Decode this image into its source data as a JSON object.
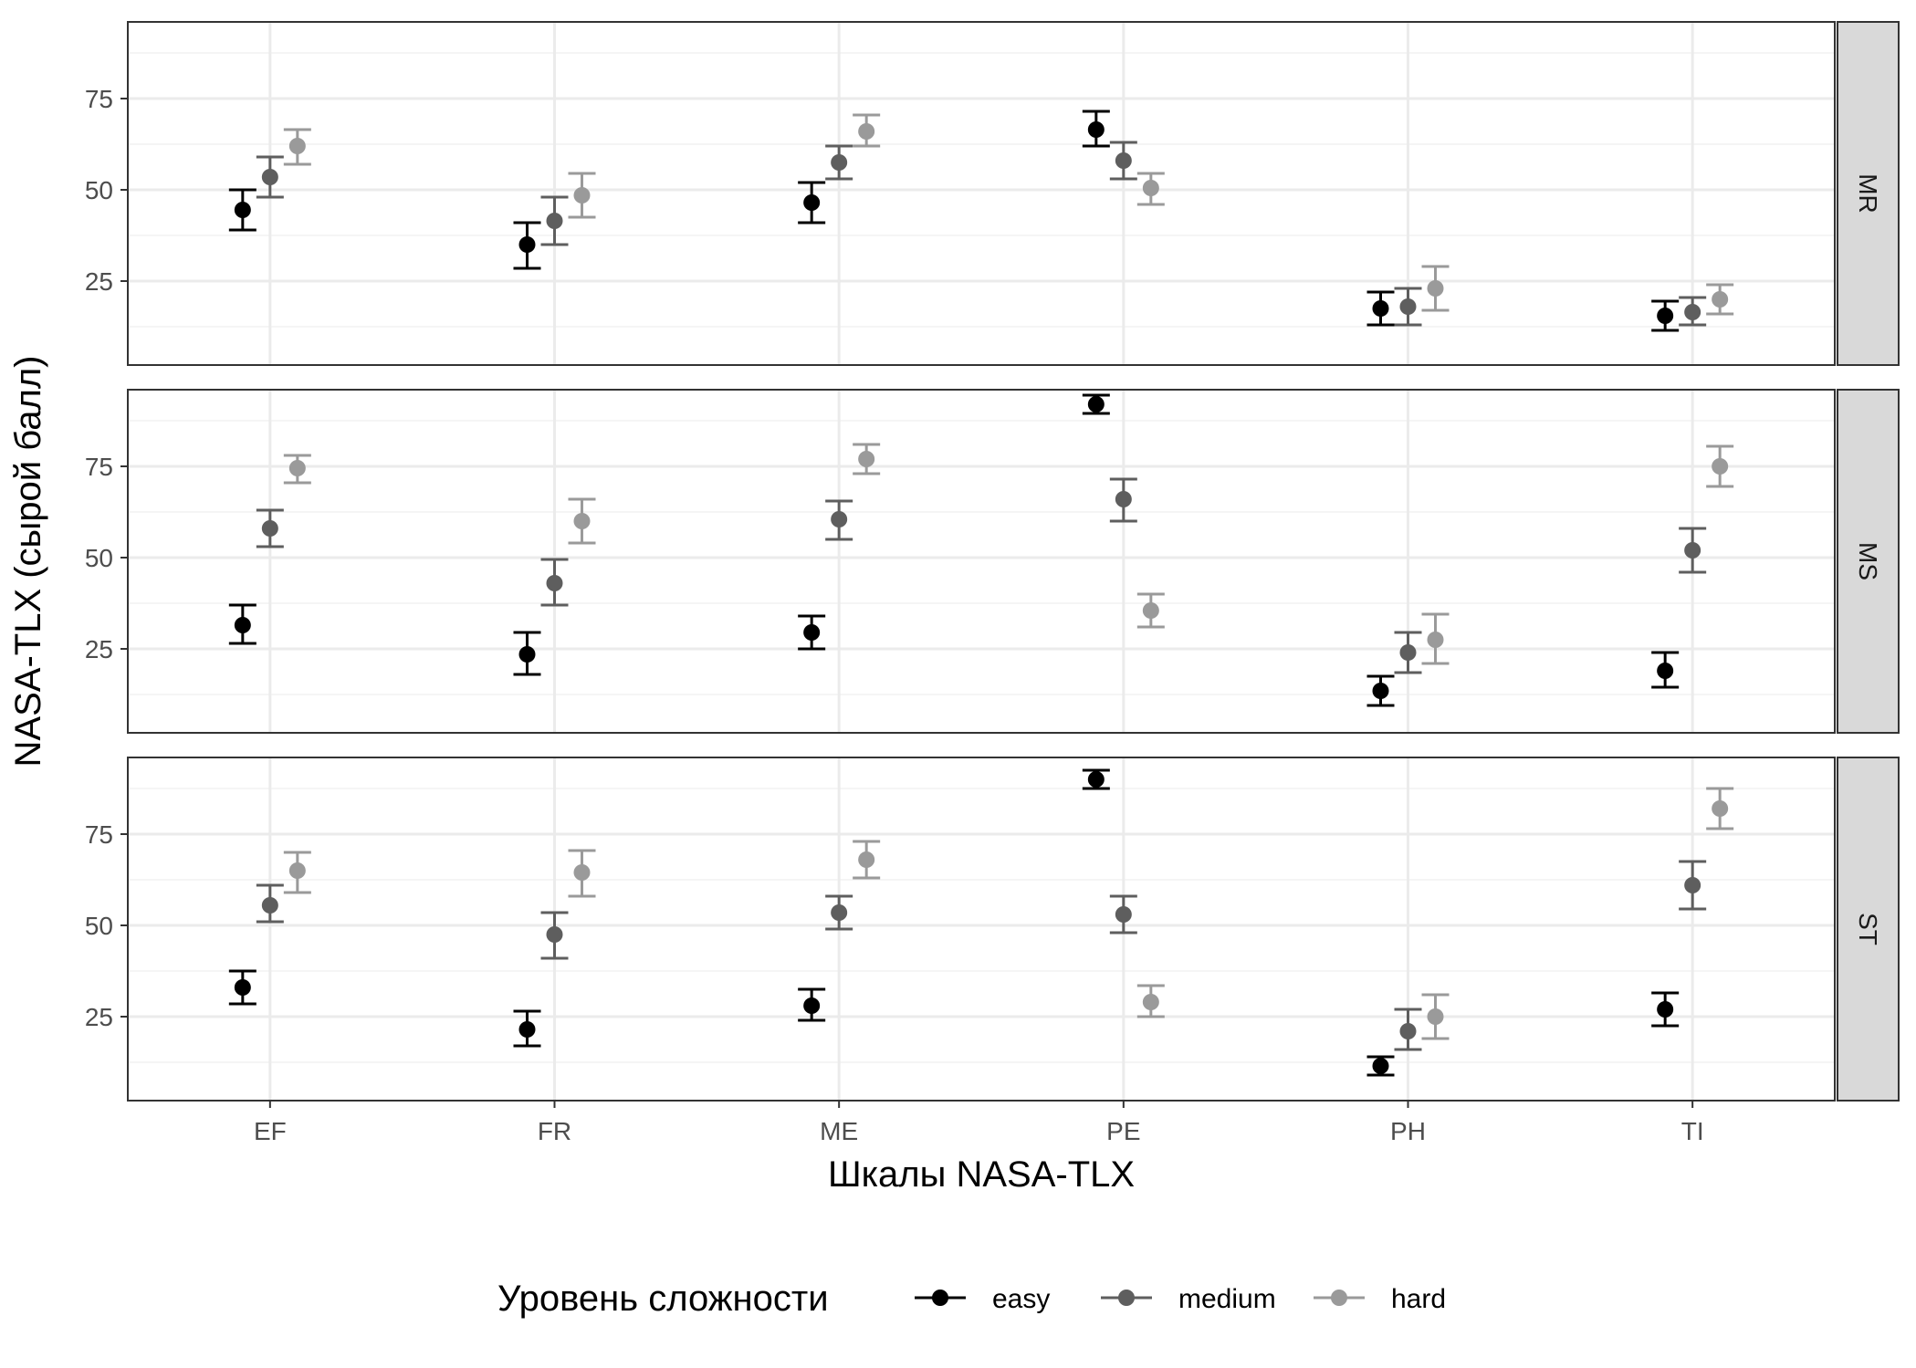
{
  "chart_data": {
    "type": "scatter",
    "subtype": "point-errorbar, faceted",
    "xlabel": "Шкалы NASA-TLX",
    "ylabel": "NASA-TLX (сырой балл)",
    "categories": [
      "EF",
      "FR",
      "ME",
      "PE",
      "PH",
      "TI"
    ],
    "y_ticks": [
      25,
      50,
      75
    ],
    "ylim": [
      2,
      96
    ],
    "grid": true,
    "legend": {
      "title": "Уровень сложности",
      "position": "bottom",
      "entries": [
        "easy",
        "medium",
        "hard"
      ]
    },
    "colors": {
      "easy": "#000000",
      "medium": "#5e5e5e",
      "hard": "#9a9a9a"
    },
    "facets": [
      {
        "name": "MR",
        "series": [
          {
            "name": "easy",
            "values": [
              44.5,
              35,
              46.5,
              66.5,
              17.5,
              15.5
            ],
            "lower": [
              39,
              28.5,
              41,
              62,
              13,
              11.5
            ],
            "upper": [
              50,
              41,
              52,
              71.5,
              22,
              19.5
            ]
          },
          {
            "name": "medium",
            "values": [
              53.5,
              41.5,
              57.5,
              58,
              18,
              16.5
            ],
            "lower": [
              48,
              35,
              53,
              53,
              13,
              13
            ],
            "upper": [
              59,
              48,
              62,
              63,
              23,
              20.5
            ]
          },
          {
            "name": "hard",
            "values": [
              62,
              48.5,
              66,
              50.5,
              23,
              20
            ],
            "lower": [
              57,
              42.5,
              62,
              46,
              17,
              16
            ],
            "upper": [
              66.5,
              54.5,
              70.5,
              54.5,
              29,
              24
            ]
          }
        ]
      },
      {
        "name": "MS",
        "series": [
          {
            "name": "easy",
            "values": [
              31.5,
              23.5,
              29.5,
              92,
              13.5,
              19
            ],
            "lower": [
              26.5,
              18,
              25,
              89.5,
              9.5,
              14.5
            ],
            "upper": [
              37,
              29.5,
              34,
              94.5,
              17.5,
              24
            ]
          },
          {
            "name": "medium",
            "values": [
              58,
              43,
              60.5,
              66,
              24,
              52
            ],
            "lower": [
              53,
              37,
              55,
              60,
              18.5,
              46
            ],
            "upper": [
              63,
              49.5,
              65.5,
              71.5,
              29.5,
              58
            ]
          },
          {
            "name": "hard",
            "values": [
              74.5,
              60,
              77,
              35.5,
              27.5,
              75
            ],
            "lower": [
              70.5,
              54,
              73,
              31,
              21,
              69.5
            ],
            "upper": [
              78,
              66,
              81,
              40,
              34.5,
              80.5
            ]
          }
        ]
      },
      {
        "name": "ST",
        "series": [
          {
            "name": "easy",
            "values": [
              33,
              21.5,
              28,
              90,
              11.5,
              27
            ],
            "lower": [
              28.5,
              17,
              24,
              87.5,
              9,
              22.5
            ],
            "upper": [
              37.5,
              26.5,
              32.5,
              92.5,
              14,
              31.5
            ]
          },
          {
            "name": "medium",
            "values": [
              55.5,
              47.5,
              53.5,
              53,
              21,
              61
            ],
            "lower": [
              51,
              41,
              49,
              48,
              16,
              54.5
            ],
            "upper": [
              61,
              53.5,
              58,
              58,
              27,
              67.5
            ]
          },
          {
            "name": "hard",
            "values": [
              65,
              64.5,
              68,
              29,
              25,
              82
            ],
            "lower": [
              59,
              58,
              63,
              25,
              19,
              76.5
            ],
            "upper": [
              70,
              70.5,
              73,
              33.5,
              31,
              87.5
            ]
          }
        ]
      }
    ]
  }
}
